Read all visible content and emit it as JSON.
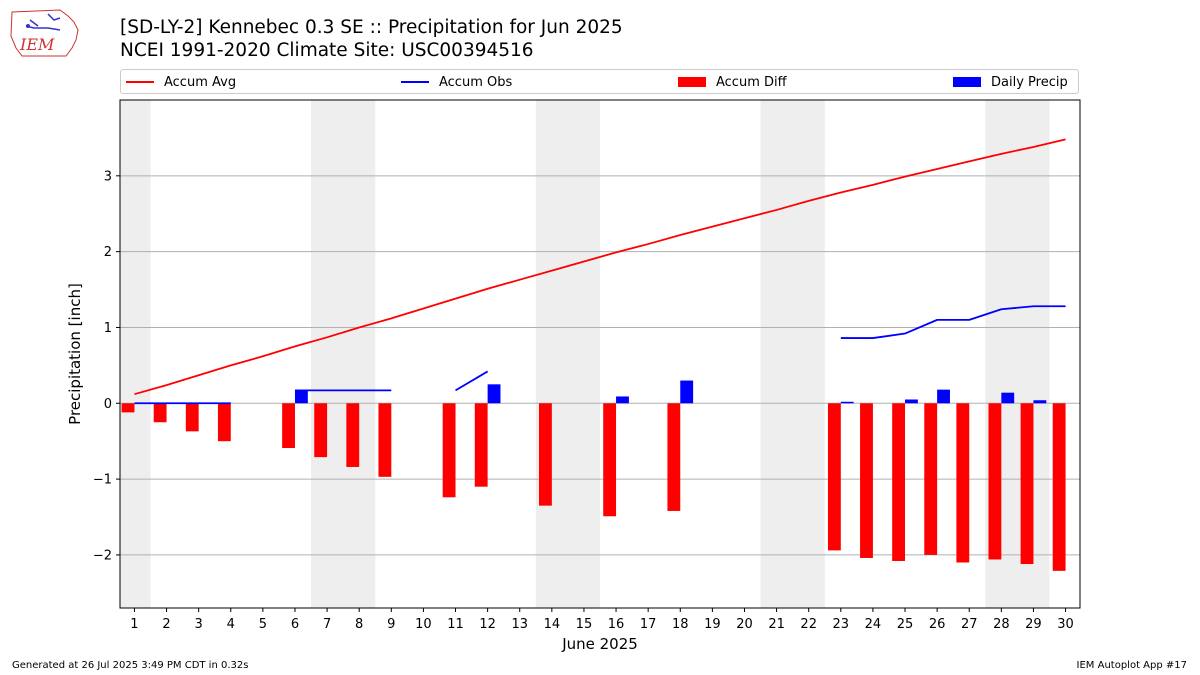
{
  "header": {
    "title_line1": "[SD-LY-2] Kennebec 0.3 SE :: Precipitation for Jun 2025",
    "title_line2": "NCEI 1991-2020 Climate Site: USC00394516",
    "logo_text": "IEM"
  },
  "legend": {
    "accum_avg": "Accum Avg",
    "accum_obs": "Accum Obs",
    "accum_diff": "Accum Diff",
    "daily_precip": "Daily Precip"
  },
  "colors": {
    "avg_line": "#ff0000",
    "obs_line": "#0000ff",
    "diff_bar": "#ff0000",
    "daily_bar": "#0000ff",
    "weekend_band": "#eeeeee",
    "grid": "#b0b0b0"
  },
  "footer": {
    "generated": "Generated at 26 Jul 2025 3:49 PM CDT in 0.32s",
    "app": "IEM Autoplot App #17"
  },
  "chart_data": {
    "type": "bar",
    "xlabel": "June 2025",
    "ylabel": "Precipitation [inch]",
    "ylim": [
      -2.7,
      4.0
    ],
    "yticks": [
      -2,
      -1,
      0,
      1,
      2,
      3
    ],
    "ytick_labels": [
      "−2",
      "−1",
      "0",
      "1",
      "2",
      "3"
    ],
    "x": [
      1,
      2,
      3,
      4,
      5,
      6,
      7,
      8,
      9,
      10,
      11,
      12,
      13,
      14,
      15,
      16,
      17,
      18,
      19,
      20,
      21,
      22,
      23,
      24,
      25,
      26,
      27,
      28,
      29,
      30
    ],
    "x_labels": [
      "1",
      "2",
      "3",
      "4",
      "5",
      "6",
      "7",
      "8",
      "9",
      "10",
      "11",
      "12",
      "13",
      "14",
      "15",
      "16",
      "17",
      "18",
      "19",
      "20",
      "21",
      "22",
      "23",
      "24",
      "25",
      "26",
      "27",
      "28",
      "29",
      "30"
    ],
    "weekend_bands": [
      [
        1,
        1
      ],
      [
        7,
        8
      ],
      [
        14,
        15
      ],
      [
        21,
        22
      ],
      [
        28,
        29
      ]
    ],
    "grid": "horizontal",
    "legend_position": "top",
    "series": [
      {
        "name": "Accum Avg",
        "kind": "line",
        "values": [
          0.12,
          0.24,
          0.37,
          0.5,
          0.62,
          0.75,
          0.87,
          1.0,
          1.12,
          1.25,
          1.38,
          1.51,
          1.63,
          1.75,
          1.87,
          1.99,
          2.1,
          2.22,
          2.33,
          2.44,
          2.55,
          2.67,
          2.78,
          2.88,
          2.99,
          3.09,
          3.19,
          3.29,
          3.38,
          3.48
        ]
      },
      {
        "name": "Accum Obs",
        "kind": "line",
        "values": [
          0.0,
          0.0,
          0.0,
          0.0,
          null,
          0.17,
          0.17,
          0.17,
          0.17,
          null,
          0.17,
          0.42,
          null,
          null,
          null,
          null,
          null,
          null,
          null,
          null,
          null,
          null,
          0.86,
          0.86,
          0.92,
          1.1,
          1.1,
          1.24,
          1.28,
          1.28
        ]
      },
      {
        "name": "Accum Diff",
        "kind": "bar",
        "values": [
          -0.12,
          -0.25,
          -0.37,
          -0.5,
          null,
          -0.59,
          -0.71,
          -0.84,
          -0.97,
          null,
          -1.24,
          -1.1,
          null,
          -1.35,
          null,
          -1.49,
          null,
          -1.42,
          null,
          null,
          null,
          null,
          -1.94,
          -2.04,
          -2.08,
          -2.0,
          -2.1,
          -2.06,
          -2.12,
          -2.21
        ]
      },
      {
        "name": "Daily Precip",
        "kind": "bar",
        "values": [
          0,
          0,
          0,
          0,
          null,
          0.17,
          0,
          0,
          0,
          null,
          0,
          0.25,
          null,
          0,
          null,
          0.09,
          null,
          0.3,
          null,
          null,
          null,
          null,
          0.02,
          0,
          0.05,
          0.18,
          0,
          0.14,
          0.04,
          0
        ]
      }
    ]
  }
}
